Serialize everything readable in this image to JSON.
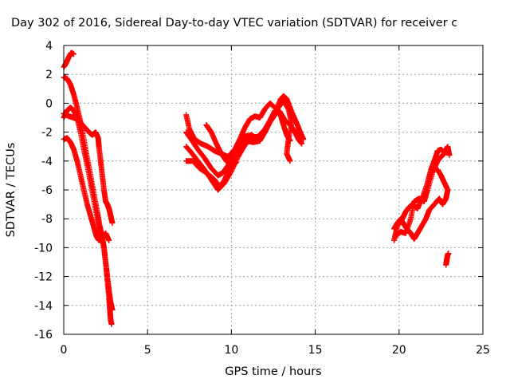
{
  "chart_data": {
    "type": "scatter",
    "title": "Day 302 of 2016, Sidereal Day-to-day VTEC variation (SDTVAR) for receiver c",
    "xlabel": "GPS time / hours",
    "ylabel": "SDTVAR / TECUs",
    "xlim": [
      0,
      25
    ],
    "ylim": [
      -16,
      4
    ],
    "xticks": [
      "0",
      "5",
      "10",
      "15",
      "20",
      "25"
    ],
    "yticks": [
      "4",
      "2",
      "0",
      "-2",
      "-4",
      "-6",
      "-8",
      "-10",
      "-12",
      "-14",
      "-16"
    ],
    "grid": true,
    "legend": "none",
    "marker": "plus",
    "color": "#ff0000",
    "tracks": [
      [
        [
          0.0,
          2.5
        ],
        [
          0.15,
          2.8
        ],
        [
          0.3,
          3.2
        ],
        [
          0.45,
          3.5
        ],
        [
          0.6,
          3.4
        ]
      ],
      [
        [
          0.0,
          1.8
        ],
        [
          0.2,
          1.7
        ],
        [
          0.4,
          1.3
        ],
        [
          0.6,
          0.6
        ],
        [
          0.8,
          -0.3
        ],
        [
          1.0,
          -1.3
        ],
        [
          1.2,
          -2.5
        ],
        [
          1.4,
          -3.8
        ],
        [
          1.6,
          -5.0
        ],
        [
          1.8,
          -6.3
        ],
        [
          2.0,
          -7.5
        ],
        [
          2.15,
          -8.5
        ],
        [
          2.3,
          -9.3
        ],
        [
          2.4,
          -10.0
        ],
        [
          2.5,
          -11.0
        ],
        [
          2.6,
          -12.3
        ],
        [
          2.7,
          -13.5
        ],
        [
          2.75,
          -14.3
        ],
        [
          2.8,
          -15.0
        ],
        [
          2.85,
          -15.3
        ]
      ],
      [
        [
          0.0,
          -2.5
        ],
        [
          0.2,
          -2.4
        ],
        [
          0.4,
          -2.7
        ],
        [
          0.6,
          -3.2
        ],
        [
          0.8,
          -4.0
        ],
        [
          1.0,
          -5.0
        ],
        [
          1.2,
          -6.0
        ],
        [
          1.4,
          -7.0
        ],
        [
          1.6,
          -7.8
        ],
        [
          1.8,
          -8.6
        ],
        [
          1.95,
          -9.2
        ],
        [
          2.1,
          -9.5
        ],
        [
          2.3,
          -9.3
        ],
        [
          2.5,
          -9.0
        ],
        [
          2.7,
          -9.5
        ]
      ],
      [
        [
          0.0,
          -1.0
        ],
        [
          0.2,
          -0.5
        ],
        [
          0.4,
          -0.3
        ],
        [
          0.6,
          -0.5
        ],
        [
          0.8,
          -1.0
        ],
        [
          1.0,
          -2.0
        ],
        [
          1.2,
          -3.2
        ],
        [
          1.4,
          -4.3
        ],
        [
          1.6,
          -5.5
        ],
        [
          1.8,
          -6.7
        ],
        [
          2.0,
          -8.0
        ],
        [
          2.2,
          -9.0
        ],
        [
          2.4,
          -10.0
        ],
        [
          2.5,
          -11.0
        ],
        [
          2.6,
          -12.0
        ],
        [
          2.7,
          -13.0
        ],
        [
          2.8,
          -13.8
        ],
        [
          2.9,
          -14.3
        ]
      ],
      [
        [
          0.0,
          -0.7
        ],
        [
          0.3,
          -0.9
        ],
        [
          0.6,
          -1.0
        ],
        [
          0.9,
          -1.2
        ],
        [
          1.2,
          -1.6
        ],
        [
          1.5,
          -2.0
        ],
        [
          1.7,
          -2.2
        ],
        [
          1.9,
          -2.0
        ],
        [
          2.05,
          -2.4
        ],
        [
          2.1,
          -3.0
        ],
        [
          2.2,
          -4.0
        ],
        [
          2.3,
          -5.0
        ],
        [
          2.4,
          -6.0
        ],
        [
          2.5,
          -6.8
        ],
        [
          2.6,
          -7.0
        ],
        [
          2.7,
          -7.3
        ],
        [
          2.8,
          -7.8
        ],
        [
          2.9,
          -8.3
        ]
      ],
      [
        [
          7.3,
          -0.8
        ],
        [
          7.5,
          -1.8
        ],
        [
          7.8,
          -2.5
        ],
        [
          8.2,
          -2.8
        ],
        [
          8.6,
          -3.0
        ],
        [
          9.0,
          -3.3
        ],
        [
          9.4,
          -3.5
        ],
        [
          9.8,
          -3.7
        ],
        [
          10.2,
          -3.2
        ],
        [
          10.5,
          -2.5
        ],
        [
          10.8,
          -1.7
        ],
        [
          11.1,
          -1.1
        ],
        [
          11.4,
          -0.9
        ],
        [
          11.7,
          -1.0
        ],
        [
          12.0,
          -0.4
        ],
        [
          12.3,
          0.0
        ],
        [
          12.6,
          -0.3
        ],
        [
          12.9,
          -0.6
        ],
        [
          13.2,
          -1.2
        ],
        [
          13.5,
          -1.5
        ],
        [
          13.8,
          -2.0
        ],
        [
          14.0,
          -2.5
        ],
        [
          14.2,
          -2.8
        ]
      ],
      [
        [
          7.3,
          -3.0
        ],
        [
          7.6,
          -3.4
        ],
        [
          8.0,
          -4.0
        ],
        [
          8.4,
          -4.6
        ],
        [
          8.8,
          -5.3
        ],
        [
          9.2,
          -6.0
        ],
        [
          9.6,
          -5.5
        ],
        [
          10.0,
          -4.7
        ],
        [
          10.4,
          -3.7
        ],
        [
          10.8,
          -2.9
        ],
        [
          11.2,
          -2.4
        ],
        [
          11.6,
          -2.3
        ],
        [
          12.0,
          -1.8
        ],
        [
          12.3,
          -1.2
        ],
        [
          12.6,
          -0.5
        ],
        [
          12.9,
          -0.7
        ],
        [
          13.1,
          -1.5
        ],
        [
          13.3,
          -2.2
        ],
        [
          13.5,
          -2.6
        ]
      ],
      [
        [
          7.3,
          -2.0
        ],
        [
          7.6,
          -2.5
        ],
        [
          8.0,
          -3.2
        ],
        [
          8.4,
          -3.8
        ],
        [
          8.8,
          -4.5
        ],
        [
          9.2,
          -5.0
        ],
        [
          9.5,
          -4.8
        ],
        [
          9.8,
          -4.3
        ],
        [
          10.1,
          -3.5
        ],
        [
          10.4,
          -2.8
        ],
        [
          10.8,
          -2.3
        ],
        [
          11.2,
          -2.2
        ],
        [
          11.6,
          -2.5
        ],
        [
          12.0,
          -2.0
        ],
        [
          12.4,
          -1.0
        ],
        [
          12.8,
          -0.3
        ],
        [
          13.1,
          0.2
        ],
        [
          13.4,
          -0.4
        ],
        [
          13.6,
          -1.4
        ],
        [
          13.4,
          -2.5
        ],
        [
          13.3,
          -3.5
        ],
        [
          13.5,
          -4.0
        ]
      ],
      [
        [
          7.3,
          -4.0
        ],
        [
          7.7,
          -4.0
        ],
        [
          8.1,
          -4.5
        ],
        [
          8.5,
          -4.8
        ],
        [
          9.0,
          -5.3
        ],
        [
          9.3,
          -5.8
        ],
        [
          9.6,
          -5.3
        ],
        [
          9.9,
          -4.5
        ],
        [
          10.2,
          -3.5
        ],
        [
          10.5,
          -3.0
        ],
        [
          10.9,
          -2.6
        ],
        [
          11.3,
          -2.7
        ],
        [
          11.7,
          -2.6
        ],
        [
          12.0,
          -2.0
        ],
        [
          12.3,
          -1.3
        ],
        [
          12.6,
          -0.8
        ],
        [
          12.9,
          0.2
        ],
        [
          13.1,
          0.5
        ],
        [
          13.3,
          0.3
        ],
        [
          13.6,
          -0.6
        ],
        [
          13.9,
          -1.4
        ],
        [
          14.1,
          -2.0
        ],
        [
          14.3,
          -2.5
        ]
      ],
      [
        [
          8.5,
          -1.5
        ],
        [
          8.8,
          -2.0
        ],
        [
          9.1,
          -2.8
        ],
        [
          9.4,
          -3.5
        ],
        [
          9.7,
          -4.0
        ],
        [
          10.0,
          -4.3
        ],
        [
          10.3,
          -4.1
        ]
      ],
      [
        [
          19.7,
          -9.5
        ],
        [
          19.9,
          -8.5
        ],
        [
          20.2,
          -8.0
        ],
        [
          20.4,
          -7.5
        ],
        [
          20.6,
          -7.2
        ],
        [
          20.8,
          -7.0
        ],
        [
          21.1,
          -7.3
        ],
        [
          21.4,
          -6.5
        ],
        [
          21.7,
          -5.5
        ],
        [
          21.9,
          -4.6
        ],
        [
          22.1,
          -4.0
        ],
        [
          22.3,
          -3.3
        ],
        [
          22.5,
          -3.2
        ],
        [
          22.7,
          -3.4
        ],
        [
          22.9,
          -3.0
        ],
        [
          23.0,
          -3.6
        ]
      ],
      [
        [
          19.7,
          -8.7
        ],
        [
          19.9,
          -8.3
        ],
        [
          20.1,
          -8.0
        ],
        [
          20.4,
          -8.6
        ],
        [
          20.7,
          -9.0
        ],
        [
          20.9,
          -9.4
        ],
        [
          21.1,
          -9.0
        ],
        [
          21.3,
          -8.6
        ],
        [
          21.6,
          -8.0
        ],
        [
          21.8,
          -7.4
        ],
        [
          22.1,
          -7.0
        ],
        [
          22.4,
          -6.6
        ],
        [
          22.6,
          -7.0
        ],
        [
          22.8,
          -6.6
        ],
        [
          22.9,
          -6.0
        ],
        [
          22.7,
          -5.5
        ],
        [
          22.5,
          -5.0
        ],
        [
          22.3,
          -4.6
        ]
      ],
      [
        [
          19.8,
          -9.2
        ],
        [
          20.1,
          -8.9
        ],
        [
          20.4,
          -9.0
        ],
        [
          20.7,
          -8.0
        ],
        [
          20.9,
          -6.8
        ],
        [
          21.2,
          -6.6
        ],
        [
          21.5,
          -6.8
        ],
        [
          21.7,
          -6.0
        ],
        [
          22.0,
          -4.8
        ],
        [
          22.3,
          -4.0
        ],
        [
          22.5,
          -3.7
        ],
        [
          22.7,
          -3.5
        ]
      ],
      [
        [
          22.8,
          -11.2
        ],
        [
          22.85,
          -10.8
        ],
        [
          22.9,
          -10.5
        ],
        [
          22.95,
          -10.4
        ]
      ]
    ]
  }
}
